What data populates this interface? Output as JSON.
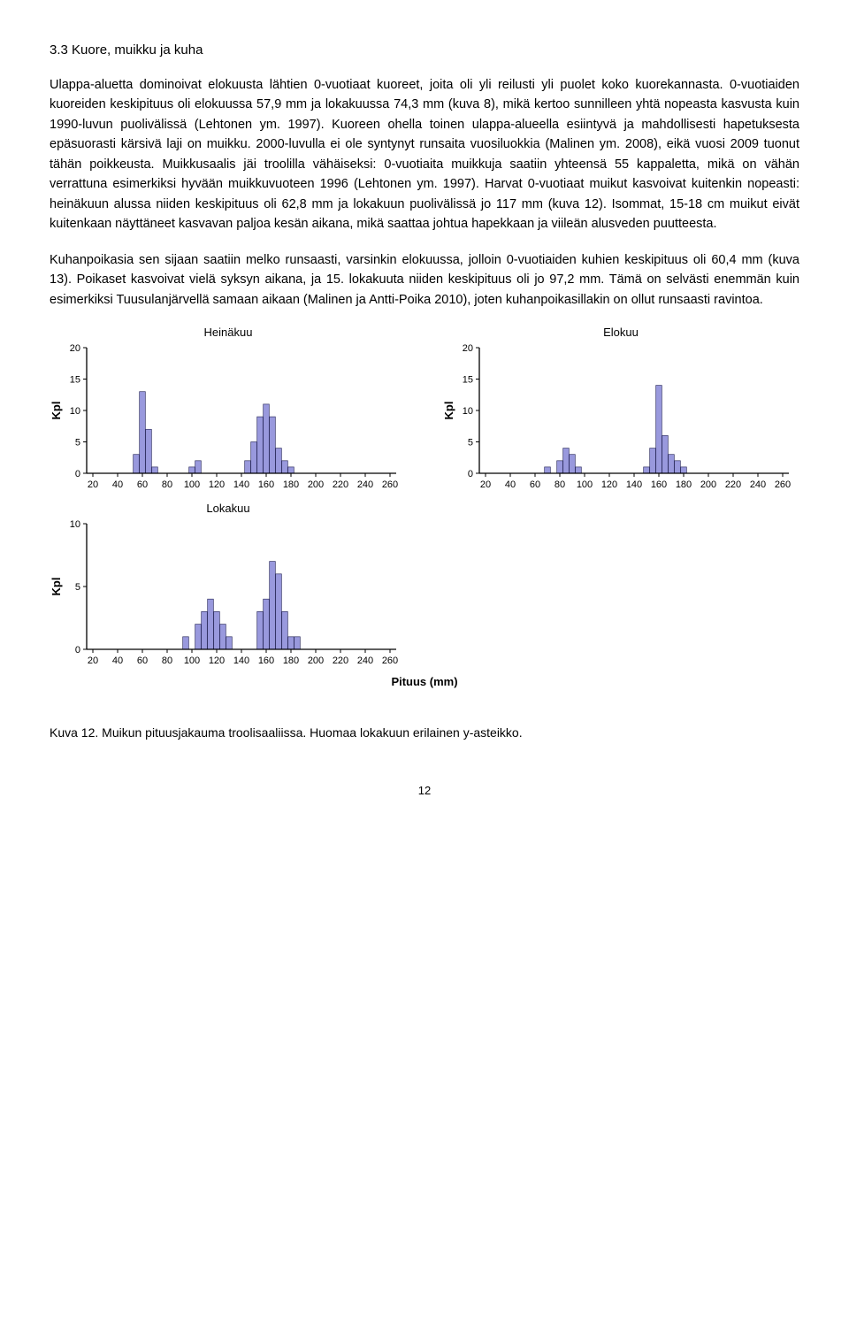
{
  "section_title": "3.3 Kuore, muikku ja kuha",
  "p1": "Ulappa-aluetta dominoivat elokuusta lähtien 0-vuotiaat kuoreet, joita oli yli reilusti yli puolet koko kuorekannasta. 0-vuotiaiden kuoreiden keskipituus oli elokuussa 57,9 mm ja lokakuussa 74,3 mm (kuva 8), mikä kertoo sunnilleen yhtä nopeasta kasvusta kuin 1990-luvun puolivälissä (Lehtonen ym. 1997). Kuoreen ohella toinen ulappa-alueella esiintyvä ja mahdollisesti hapetuksesta epäsuorasti kärsivä laji on muikku. 2000-luvulla ei ole syntynyt runsaita vuosiluokkia (Malinen ym. 2008), eikä vuosi 2009 tuonut tähän poikkeusta. Muikkusaalis jäi troolilla vähäiseksi: 0-vuotiaita muikkuja saatiin yhteensä 55 kappaletta, mikä on vähän verrattuna esimerkiksi hyvään muikkuvuoteen 1996 (Lehtonen ym. 1997). Harvat 0-vuotiaat muikut kasvoivat kuitenkin nopeasti: heinäkuun alussa niiden keskipituus oli 62,8 mm ja lokakuun puolivälissä jo 117 mm (kuva 12). Isommat, 15-18 cm muikut eivät kuitenkaan näyttäneet kasvavan paljoa kesän aikana, mikä saattaa johtua hapekkaan ja viileän alusveden puutteesta.",
  "p2": "Kuhanpoikasia sen sijaan saatiin melko runsaasti, varsinkin elokuussa, jolloin 0-vuotiaiden kuhien keskipituus oli 60,4 mm (kuva 13). Poikaset kasvoivat vielä syksyn aikana, ja 15. lokakuuta niiden keskipituus oli jo 97,2 mm. Tämä on selvästi enemmän kuin esimerkiksi Tuusulanjärvellä samaan aikaan (Malinen ja Antti-Poika 2010), joten kuhanpoikasillakin on ollut runsaasti ravintoa.",
  "caption": "Kuva 12. Muikun pituusjakauma troolisaaliissa. Huomaa lokakuun erilainen y-asteikko.",
  "page_number": "12",
  "chart_style": {
    "bar_fill": "#9999dd",
    "bar_stroke": "#333366",
    "axis_color": "#000000",
    "bg": "#ffffff",
    "tick_fontsize": 11,
    "title_fontsize": 13,
    "ylabel": "Kpl",
    "xlabel": "Pituus (mm)",
    "x_ticks": [
      20,
      40,
      60,
      80,
      100,
      120,
      140,
      160,
      180,
      200,
      220,
      240,
      260
    ]
  },
  "charts": [
    {
      "title": "Heinäkuu",
      "ymax": 20,
      "ytick": 5,
      "bars": [
        {
          "x": 55,
          "h": 3
        },
        {
          "x": 60,
          "h": 13
        },
        {
          "x": 65,
          "h": 7
        },
        {
          "x": 70,
          "h": 1
        },
        {
          "x": 100,
          "h": 1
        },
        {
          "x": 105,
          "h": 2
        },
        {
          "x": 145,
          "h": 2
        },
        {
          "x": 150,
          "h": 5
        },
        {
          "x": 155,
          "h": 9
        },
        {
          "x": 160,
          "h": 11
        },
        {
          "x": 165,
          "h": 9
        },
        {
          "x": 170,
          "h": 4
        },
        {
          "x": 175,
          "h": 2
        },
        {
          "x": 180,
          "h": 1
        }
      ]
    },
    {
      "title": "Elokuu",
      "ymax": 20,
      "ytick": 5,
      "bars": [
        {
          "x": 70,
          "h": 1
        },
        {
          "x": 80,
          "h": 2
        },
        {
          "x": 85,
          "h": 4
        },
        {
          "x": 90,
          "h": 3
        },
        {
          "x": 95,
          "h": 1
        },
        {
          "x": 150,
          "h": 1
        },
        {
          "x": 155,
          "h": 4
        },
        {
          "x": 160,
          "h": 14
        },
        {
          "x": 165,
          "h": 6
        },
        {
          "x": 170,
          "h": 3
        },
        {
          "x": 175,
          "h": 2
        },
        {
          "x": 180,
          "h": 1
        }
      ]
    },
    {
      "title": "Lokakuu",
      "ymax": 10,
      "ytick": 5,
      "bars": [
        {
          "x": 95,
          "h": 1
        },
        {
          "x": 105,
          "h": 2
        },
        {
          "x": 110,
          "h": 3
        },
        {
          "x": 115,
          "h": 4
        },
        {
          "x": 120,
          "h": 3
        },
        {
          "x": 125,
          "h": 2
        },
        {
          "x": 130,
          "h": 1
        },
        {
          "x": 155,
          "h": 3
        },
        {
          "x": 160,
          "h": 4
        },
        {
          "x": 165,
          "h": 7
        },
        {
          "x": 170,
          "h": 6
        },
        {
          "x": 175,
          "h": 3
        },
        {
          "x": 180,
          "h": 1
        },
        {
          "x": 185,
          "h": 1
        }
      ]
    }
  ]
}
